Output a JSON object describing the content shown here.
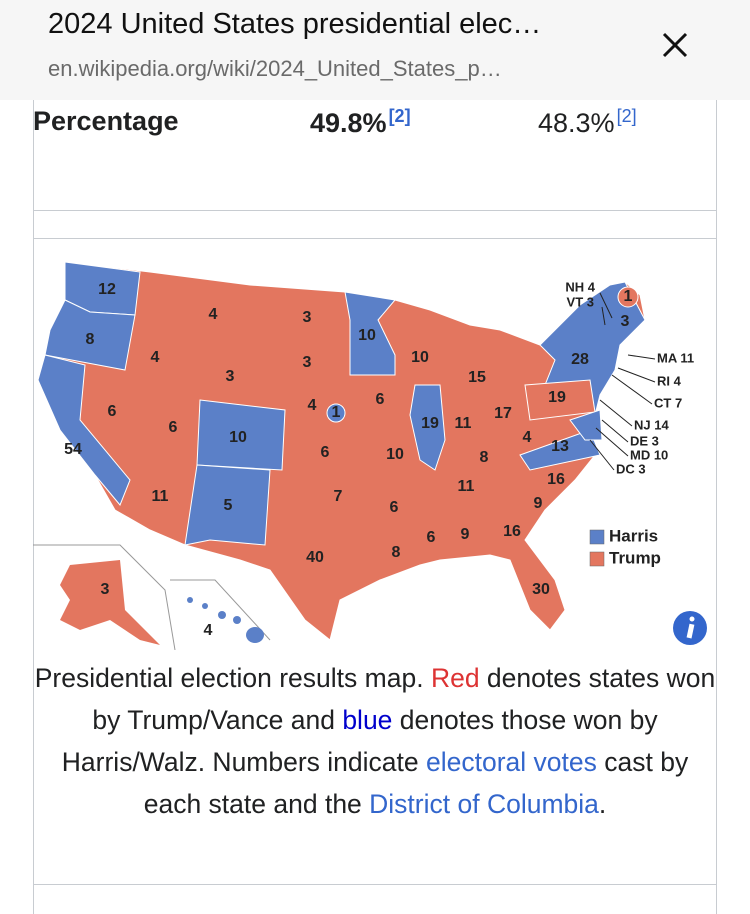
{
  "header": {
    "title": "2024 United States presidential elec…",
    "url": "en.wikipedia.org/wiki/2024_United_States_p…"
  },
  "infobox": {
    "label": "Percentage",
    "cells": [
      {
        "value": "49.8%",
        "ref": "[2]"
      },
      {
        "value": "48.3%",
        "ref": "[2]"
      }
    ]
  },
  "map": {
    "state_labels": [
      12,
      8,
      4,
      3,
      10,
      4,
      3,
      3,
      10,
      15,
      28,
      6,
      4,
      1,
      6,
      19,
      54,
      6,
      10,
      19,
      11,
      17,
      4,
      13,
      6,
      10,
      8,
      16,
      11,
      5,
      7,
      6,
      11,
      9,
      40,
      8,
      6,
      9,
      16,
      30,
      3,
      4,
      1,
      3
    ],
    "callouts": [
      "NH 4",
      "VT 3",
      "MA 11",
      "RI 4",
      "CT 7",
      "NJ 14",
      "DE 3",
      "MD 10",
      "DC 3"
    ],
    "legend": [
      {
        "name": "Harris",
        "color": "#5b80c8"
      },
      {
        "name": "Trump",
        "color": "#e3765f"
      }
    ]
  },
  "caption": [
    "Presidential election results map. ",
    "Red",
    " denotes states won by Trump/Vance and ",
    "blue",
    " denotes those won by Harris/Walz. Numbers indicate ",
    "electoral votes",
    " cast by each state and the ",
    "District of Columbia",
    "."
  ]
}
